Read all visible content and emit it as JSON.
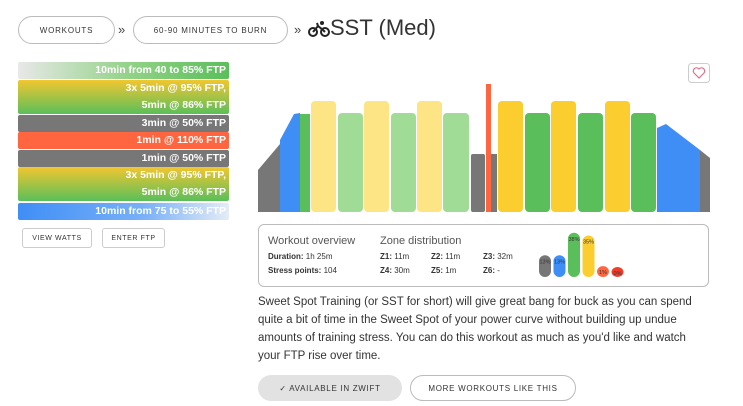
{
  "breadcrumb": [
    "WORKOUTS",
    "60-90 MINUTES TO BURN"
  ],
  "separator": "»",
  "title": "SST (Med)",
  "intervals": [
    [
      "10min from 40 to 85% FTP"
    ],
    [
      "3x 5min @ 95% FTP,",
      "5min @ 86% FTP"
    ],
    [
      "3min @ 50% FTP"
    ],
    [
      "1min @ 110% FTP"
    ],
    [
      "1min @ 50% FTP"
    ],
    [
      "3x 5min @ 95% FTP,",
      "5min @ 86% FTP"
    ],
    [
      "10min from 75 to 55% FTP"
    ]
  ],
  "buttons": [
    "VIEW WATTS",
    "ENTER FTP"
  ],
  "overview": {
    "heading": "Workout overview",
    "duration_label": "Duration:",
    "duration": "1h 25m",
    "stress_label": "Stress points:",
    "stress": "104"
  },
  "zones": {
    "heading": "Zone distribution",
    "items": [
      {
        "zone": "Z1:",
        "time": "11m"
      },
      {
        "zone": "Z2:",
        "time": "11m"
      },
      {
        "zone": "Z3:",
        "time": "32m"
      },
      {
        "zone": "Z4:",
        "time": "30m"
      },
      {
        "zone": "Z5:",
        "time": "1m"
      },
      {
        "zone": "Z6:",
        "time": "-"
      }
    ],
    "chart": [
      {
        "value": 13,
        "label": "13%",
        "color": "#777777"
      },
      {
        "value": 13,
        "label": "13%",
        "color": "#3f8ef6"
      },
      {
        "value": 38,
        "label": "38%",
        "color": "#5abf5a"
      },
      {
        "value": 35,
        "label": "35%",
        "color": "#fccd2f"
      },
      {
        "value": 1,
        "label": "1%",
        "color": "#ff6640"
      },
      {
        "value": 0,
        "label": "0%",
        "color": "#f03c2a"
      }
    ]
  },
  "description": "Sweet Spot Training (or SST for short) will give great bang for buck as you can spend quite a bit of time in the Sweet Spot of your power curve without building up undue amounts of training stress. You can do this workout as much as you'd like and watch your FTP rise over time.",
  "actions": [
    "✓ AVAILABLE IN ZWIFT",
    "MORE WORKOUTS LIKE THIS"
  ]
}
